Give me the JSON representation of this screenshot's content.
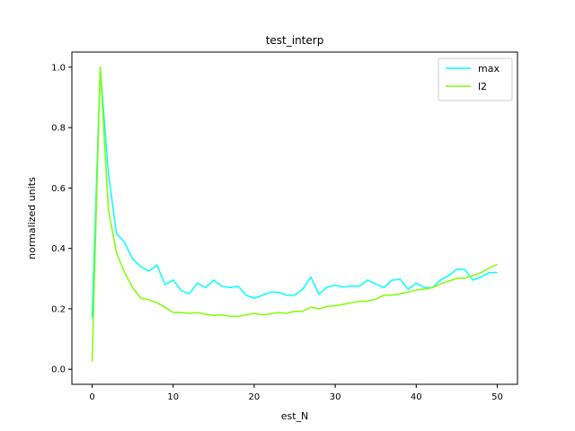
{
  "chart_data": {
    "type": "line",
    "title": "test_interp",
    "xlabel": "est_N",
    "ylabel": "normalized units",
    "xlim": [
      -2.5,
      52.5
    ],
    "ylim": [
      -0.05,
      1.05
    ],
    "xticks": [
      0,
      10,
      20,
      30,
      40,
      50
    ],
    "yticks": [
      0.0,
      0.2,
      0.4,
      0.6,
      0.8,
      1.0
    ],
    "ytick_labels": [
      "0.0",
      "0.2",
      "0.4",
      "0.6",
      "0.8",
      "1.0"
    ],
    "legend_position": "top-right",
    "x": [
      0,
      1,
      2,
      3,
      4,
      5,
      6,
      7,
      8,
      9,
      10,
      11,
      12,
      13,
      14,
      15,
      16,
      17,
      18,
      19,
      20,
      21,
      22,
      23,
      24,
      25,
      26,
      27,
      28,
      29,
      30,
      31,
      32,
      33,
      34,
      35,
      36,
      37,
      38,
      39,
      40,
      41,
      42,
      43,
      44,
      45,
      46,
      47,
      48,
      49,
      50
    ],
    "series": [
      {
        "name": "max",
        "color": "#00ffff",
        "values": [
          0.17,
          1.0,
          0.65,
          0.45,
          0.42,
          0.365,
          0.34,
          0.325,
          0.345,
          0.28,
          0.295,
          0.26,
          0.25,
          0.285,
          0.27,
          0.295,
          0.275,
          0.27,
          0.275,
          0.245,
          0.235,
          0.245,
          0.255,
          0.255,
          0.245,
          0.245,
          0.265,
          0.305,
          0.248,
          0.272,
          0.278,
          0.272,
          0.275,
          0.275,
          0.295,
          0.282,
          0.27,
          0.295,
          0.298,
          0.265,
          0.285,
          0.27,
          0.27,
          0.295,
          0.31,
          0.33,
          0.33,
          0.295,
          0.305,
          0.32,
          0.32
        ]
      },
      {
        "name": "l2",
        "color": "#7fff00",
        "values": [
          0.025,
          1.0,
          0.53,
          0.385,
          0.32,
          0.27,
          0.235,
          0.23,
          0.22,
          0.205,
          0.188,
          0.188,
          0.185,
          0.188,
          0.182,
          0.178,
          0.18,
          0.175,
          0.175,
          0.18,
          0.185,
          0.18,
          0.183,
          0.188,
          0.185,
          0.192,
          0.192,
          0.205,
          0.2,
          0.208,
          0.21,
          0.215,
          0.22,
          0.225,
          0.225,
          0.232,
          0.245,
          0.245,
          0.25,
          0.255,
          0.262,
          0.265,
          0.27,
          0.282,
          0.292,
          0.3,
          0.302,
          0.31,
          0.32,
          0.335,
          0.347
        ]
      }
    ]
  }
}
